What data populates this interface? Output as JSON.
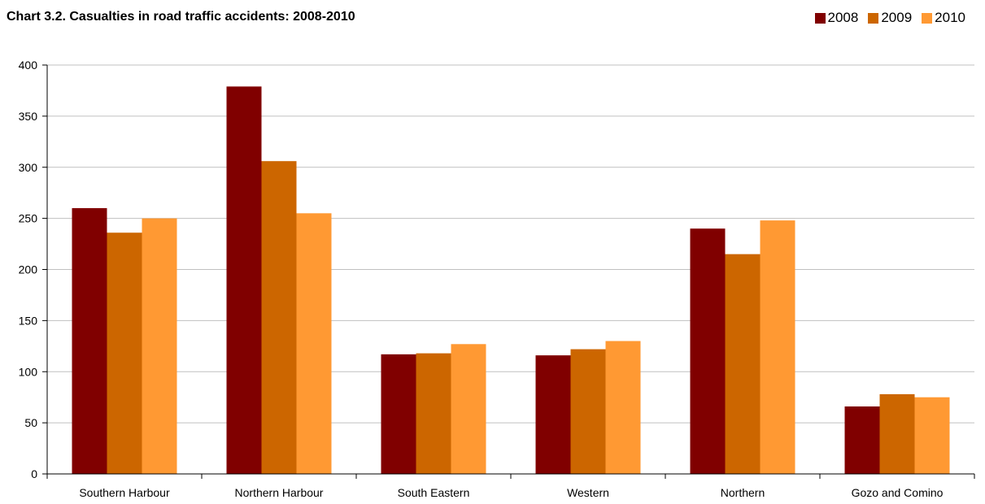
{
  "chart_data": {
    "type": "bar",
    "title": "Chart 3.2. Casualties in road traffic accidents: 2008-2010",
    "xlabel": "",
    "ylabel": "",
    "categories": [
      "Southern Harbour",
      "Northern Harbour",
      "South Eastern",
      "Western",
      "Northern",
      "Gozo and Comino"
    ],
    "series": [
      {
        "name": "2008",
        "color": "#800000",
        "values": [
          260,
          379,
          117,
          116,
          240,
          66
        ]
      },
      {
        "name": "2009",
        "color": "#CC6600",
        "values": [
          236,
          306,
          118,
          122,
          215,
          78
        ]
      },
      {
        "name": "2010",
        "color": "#FF9933",
        "values": [
          250,
          255,
          127,
          130,
          248,
          75
        ]
      }
    ],
    "ylim": [
      0,
      400
    ],
    "yticks": [
      0,
      50,
      100,
      150,
      200,
      250,
      300,
      350,
      400
    ],
    "grid": true,
    "legend_position": "top-right"
  }
}
